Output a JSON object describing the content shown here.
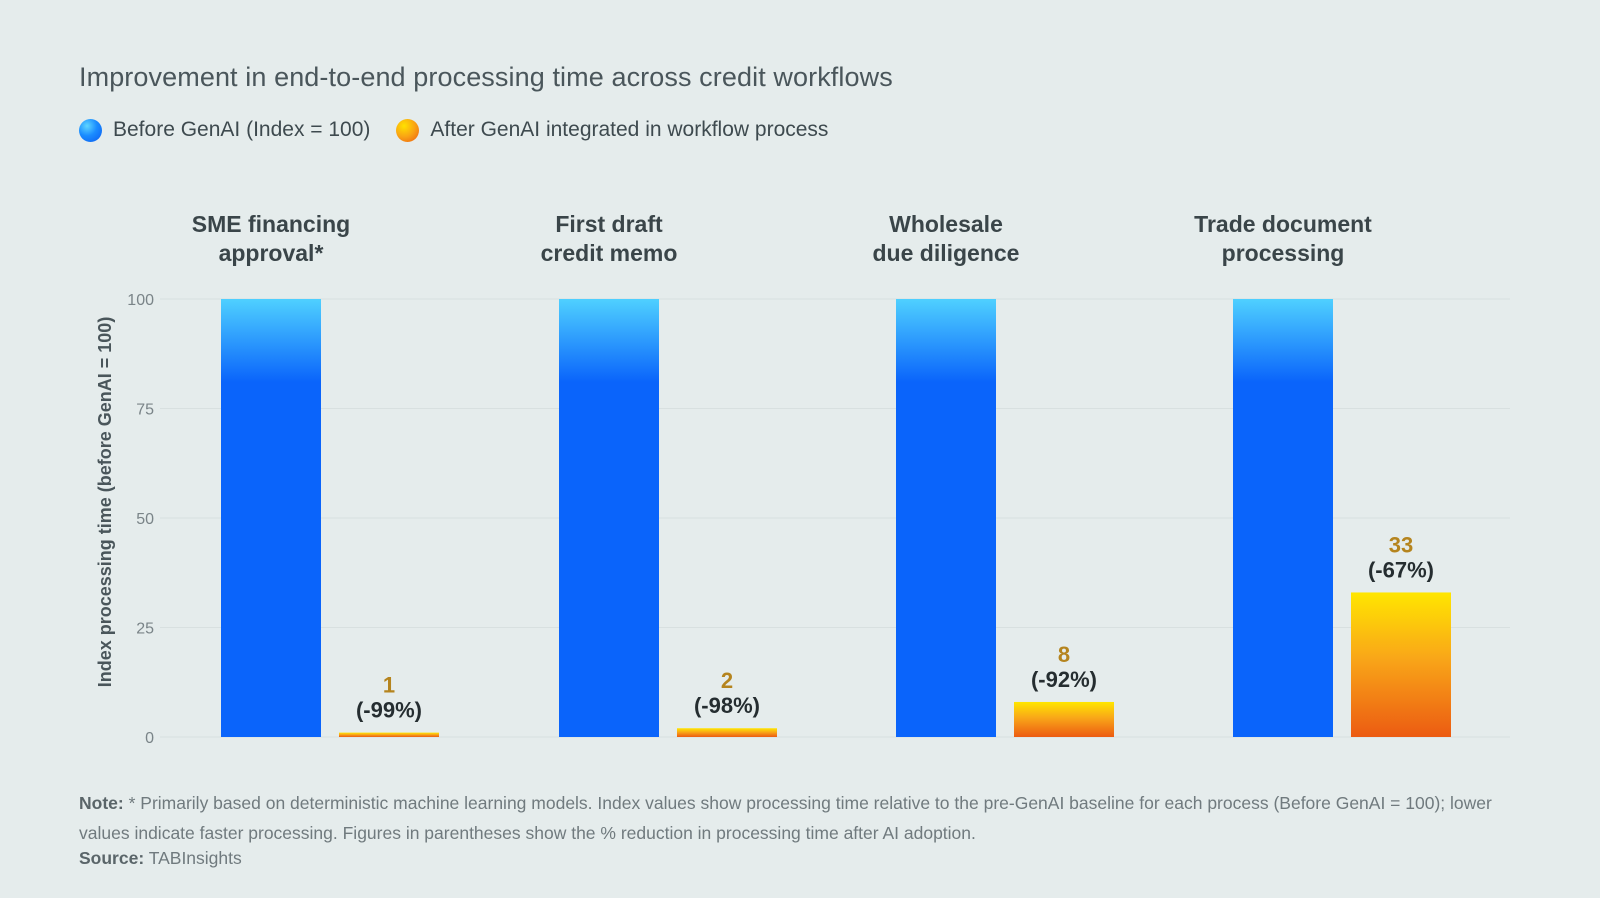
{
  "title": "Improvement in end-to-end processing time across credit workflows",
  "legend": [
    {
      "label": "Before GenAI (Index = 100)",
      "icon": "blue-gradient-dot-icon",
      "color": "#0a66ff"
    },
    {
      "label": "After GenAI integrated in workflow process",
      "icon": "orange-gradient-dot-icon",
      "color": "#f7a21a"
    }
  ],
  "note": {
    "label": "Note:",
    "text": "* Primarily based on deterministic machine learning models. Index values show processing time relative to the pre-GenAI baseline for each process (Before GenAI = 100); lower values indicate faster processing. Figures in parentheses show the % reduction in processing time after AI adoption."
  },
  "source": {
    "label": "Source:",
    "text": "TABInsights"
  },
  "colors": {
    "before_top": "#4fd0ff",
    "before_main": "#0a64fb",
    "after_top": "#ffe600",
    "after_bottom": "#ec5b12",
    "value_label": "#b5841e",
    "grid": "#d8e0e0"
  },
  "chart_data": {
    "type": "bar",
    "title": "Improvement in end-to-end processing time across credit workflows",
    "ylabel": "Index processing time (before GenAI = 100)",
    "ylim": [
      0,
      100
    ],
    "yticks": [
      0,
      25,
      50,
      75,
      100
    ],
    "grid": true,
    "legend_position": "top-left",
    "categories": [
      [
        "SME financing",
        "approval*"
      ],
      [
        "First draft",
        "credit memo"
      ],
      [
        "Wholesale",
        "due diligence"
      ],
      [
        "Trade document",
        "processing"
      ]
    ],
    "series": [
      {
        "name": "Before GenAI (Index = 100)",
        "values": [
          100,
          100,
          100,
          100
        ]
      },
      {
        "name": "After GenAI integrated in workflow process",
        "values": [
          1,
          2,
          8,
          33
        ],
        "labels": [
          "1",
          "2",
          "8",
          "33"
        ],
        "changes": [
          "(-99%)",
          "(-98%)",
          "(-92%)",
          "(-67%)"
        ]
      }
    ]
  }
}
